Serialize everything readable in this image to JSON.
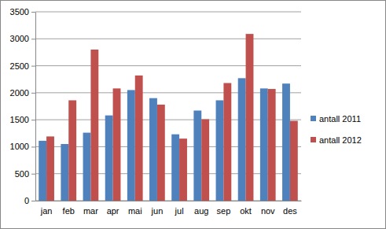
{
  "chart_data": {
    "type": "bar",
    "categories": [
      "jan",
      "feb",
      "mar",
      "apr",
      "mai",
      "jun",
      "jul",
      "aug",
      "sep",
      "okt",
      "nov",
      "des"
    ],
    "series": [
      {
        "name": "antall 2011",
        "color": "#4f81bd",
        "values": [
          1110,
          1050,
          1260,
          1580,
          2050,
          1900,
          1230,
          1670,
          1860,
          2270,
          2080,
          2170
        ]
      },
      {
        "name": "antall 2012",
        "color": "#c0504d",
        "values": [
          1190,
          1860,
          2800,
          2080,
          2320,
          1780,
          1150,
          1510,
          2180,
          3090,
          2070,
          1480
        ]
      }
    ],
    "ylim": [
      0,
      3500
    ],
    "yticks": [
      0,
      500,
      1000,
      1500,
      2000,
      2500,
      3000,
      3500
    ],
    "grid": true,
    "legend": "right"
  }
}
